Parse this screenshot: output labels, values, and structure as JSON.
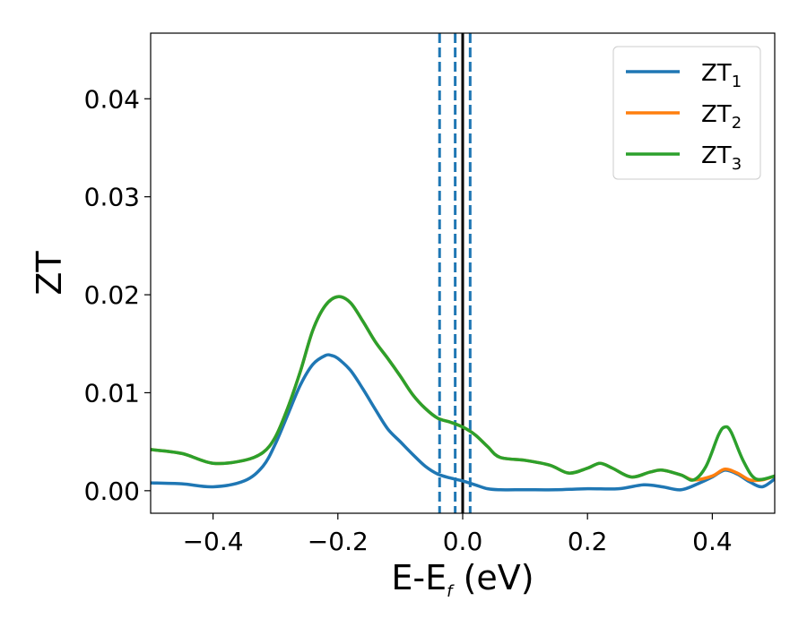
{
  "chart_data": {
    "type": "line",
    "xlabel_main": "E-E",
    "xlabel_sub": "f",
    "xlabel_unit": " (eV)",
    "ylabel": "ZT",
    "xlim": [
      -0.5,
      0.5
    ],
    "ylim": [
      -0.0023,
      0.0467
    ],
    "xticks": [
      -0.4,
      -0.2,
      0.0,
      0.2,
      0.4
    ],
    "xtick_labels": [
      "−0.4",
      "−0.2",
      "0.0",
      "0.2",
      "0.4"
    ],
    "yticks": [
      0.0,
      0.01,
      0.02,
      0.03,
      0.04
    ],
    "ytick_labels": [
      "0.00",
      "0.01",
      "0.02",
      "0.03",
      "0.04"
    ],
    "grid": false,
    "legend_position": "top-right",
    "vlines": [
      {
        "x": 0.0,
        "style": "solid",
        "color": "#000000"
      },
      {
        "x": -0.037,
        "style": "dashed",
        "color": "#1f77b4"
      },
      {
        "x": -0.012,
        "style": "dashed",
        "color": "#1f77b4"
      },
      {
        "x": 0.012,
        "style": "dashed",
        "color": "#1f77b4"
      }
    ],
    "series": [
      {
        "name_main": "ZT",
        "name_sub": "1",
        "color": "#1f77b4",
        "x": [
          -0.5,
          -0.45,
          -0.4,
          -0.35,
          -0.32,
          -0.3,
          -0.28,
          -0.26,
          -0.24,
          -0.22,
          -0.21,
          -0.2,
          -0.18,
          -0.16,
          -0.14,
          -0.12,
          -0.1,
          -0.08,
          -0.06,
          -0.04,
          -0.02,
          0.0,
          0.02,
          0.04,
          0.06,
          0.1,
          0.15,
          0.2,
          0.25,
          0.29,
          0.32,
          0.35,
          0.38,
          0.4,
          0.42,
          0.44,
          0.46,
          0.48,
          0.5
        ],
        "y": [
          0.0008,
          0.0007,
          0.0004,
          0.001,
          0.0025,
          0.0048,
          0.0078,
          0.0108,
          0.0129,
          0.0138,
          0.0138,
          0.0135,
          0.0123,
          0.0104,
          0.0083,
          0.0063,
          0.005,
          0.0037,
          0.0025,
          0.0017,
          0.0013,
          0.001,
          0.0006,
          0.0002,
          0.0001,
          0.0001,
          0.0001,
          0.0002,
          0.0002,
          0.0006,
          0.0004,
          0.0001,
          0.0008,
          0.0014,
          0.0021,
          0.0017,
          0.0009,
          0.0004,
          0.0012
        ]
      },
      {
        "name_main": "ZT",
        "name_sub": "2",
        "color": "#ff7f0e",
        "x": [
          -0.5,
          -0.45,
          -0.4,
          -0.35,
          -0.32,
          -0.3,
          -0.28,
          -0.26,
          -0.24,
          -0.22,
          -0.2,
          -0.18,
          -0.16,
          -0.14,
          -0.12,
          -0.1,
          -0.08,
          -0.06,
          -0.04,
          -0.02,
          0.0,
          0.02,
          0.04,
          0.06,
          0.1,
          0.14,
          0.17,
          0.2,
          0.22,
          0.24,
          0.27,
          0.3,
          0.32,
          0.35,
          0.37,
          0.4,
          0.42,
          0.44,
          0.46,
          0.48,
          0.5
        ],
        "y": [
          0.0042,
          0.0038,
          0.0028,
          0.0031,
          0.0039,
          0.0055,
          0.0085,
          0.0122,
          0.0164,
          0.0189,
          0.0198,
          0.0192,
          0.0173,
          0.0152,
          0.0135,
          0.0117,
          0.0098,
          0.0084,
          0.0074,
          0.007,
          0.0065,
          0.0057,
          0.0045,
          0.0034,
          0.0031,
          0.0026,
          0.0018,
          0.0023,
          0.0028,
          0.0023,
          0.0014,
          0.0019,
          0.0021,
          0.0016,
          0.0011,
          0.0015,
          0.0022,
          0.0018,
          0.0011,
          0.0011,
          0.0015
        ]
      },
      {
        "name_main": "ZT",
        "name_sub": "3",
        "color": "#2ca02c",
        "x": [
          -0.5,
          -0.45,
          -0.4,
          -0.35,
          -0.32,
          -0.3,
          -0.28,
          -0.26,
          -0.24,
          -0.22,
          -0.2,
          -0.18,
          -0.16,
          -0.14,
          -0.12,
          -0.1,
          -0.08,
          -0.06,
          -0.04,
          -0.02,
          0.0,
          0.02,
          0.04,
          0.06,
          0.1,
          0.14,
          0.17,
          0.2,
          0.22,
          0.24,
          0.27,
          0.3,
          0.32,
          0.35,
          0.37,
          0.39,
          0.41,
          0.42,
          0.43,
          0.45,
          0.47,
          0.5
        ],
        "y": [
          0.0042,
          0.0038,
          0.0028,
          0.0031,
          0.0039,
          0.0055,
          0.0085,
          0.0122,
          0.0164,
          0.0189,
          0.0198,
          0.0192,
          0.0173,
          0.0152,
          0.0135,
          0.0117,
          0.0098,
          0.0084,
          0.0074,
          0.007,
          0.0065,
          0.0057,
          0.0045,
          0.0034,
          0.0031,
          0.0026,
          0.0018,
          0.0023,
          0.0028,
          0.0023,
          0.0014,
          0.0019,
          0.0021,
          0.0016,
          0.0011,
          0.0025,
          0.0057,
          0.0065,
          0.006,
          0.003,
          0.0012,
          0.0015
        ]
      }
    ]
  }
}
